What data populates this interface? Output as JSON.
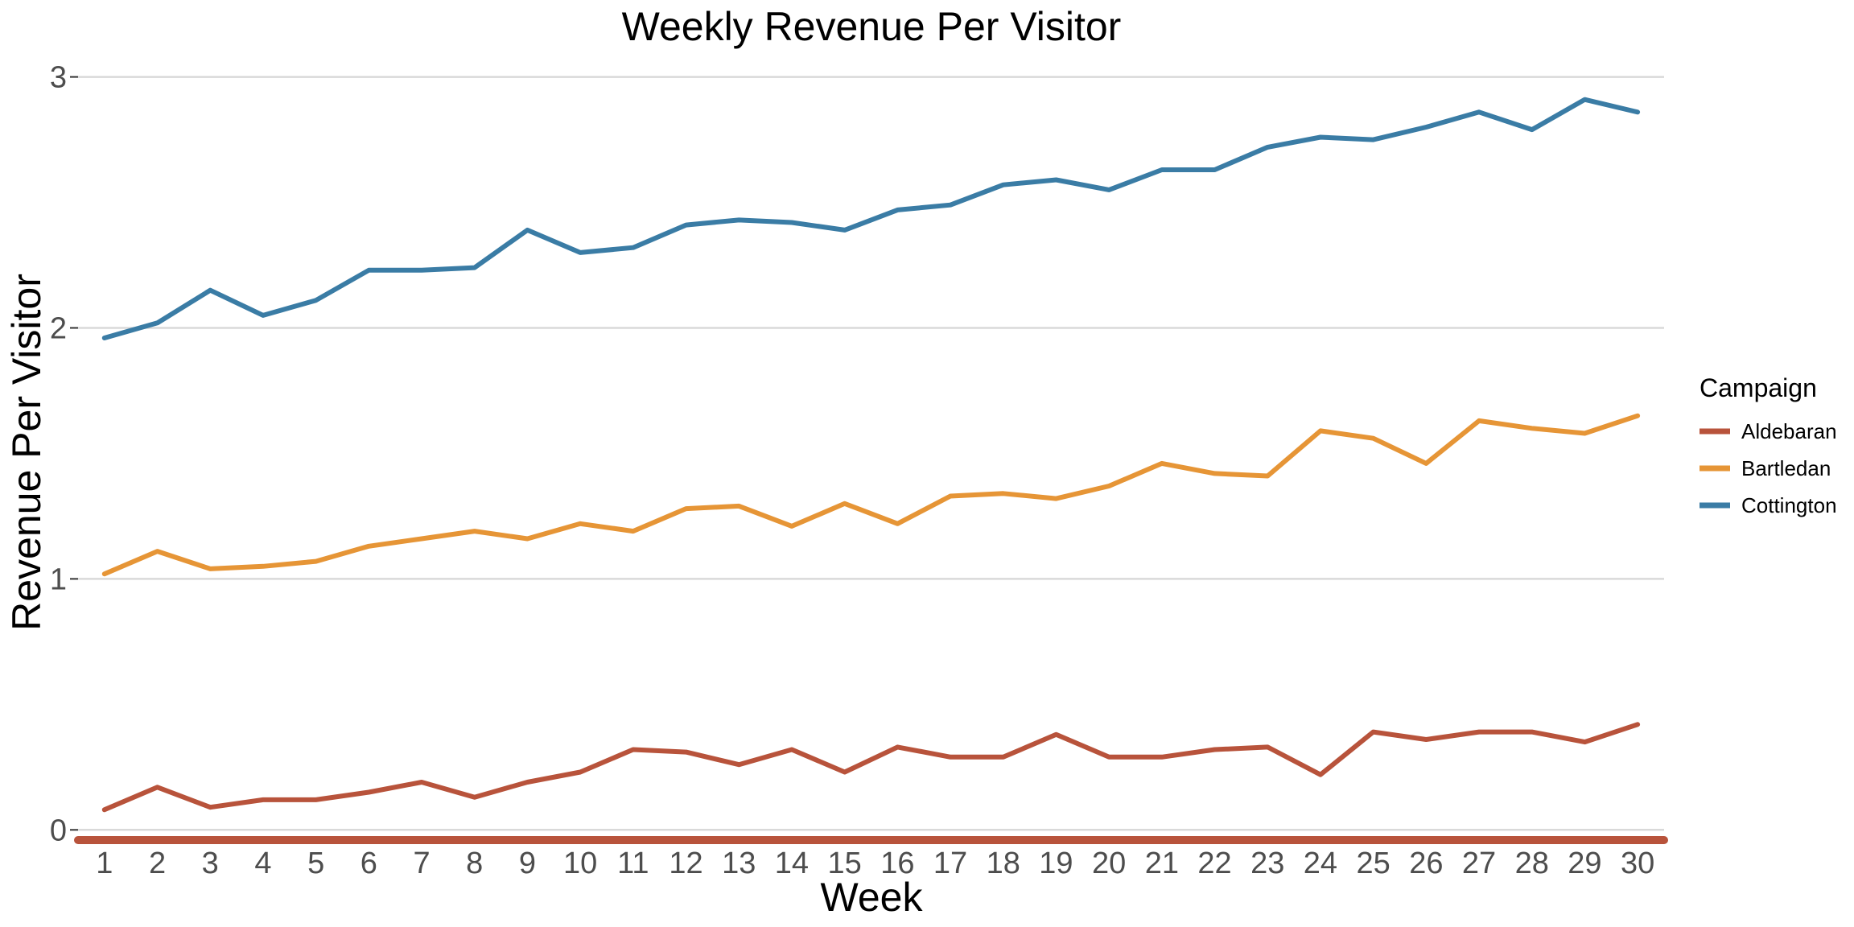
{
  "chart_data": {
    "type": "line",
    "title": "Weekly Revenue Per Visitor",
    "xlabel": "Week",
    "ylabel": "Revenue Per Visitor",
    "x": [
      1,
      2,
      3,
      4,
      5,
      6,
      7,
      8,
      9,
      10,
      11,
      12,
      13,
      14,
      15,
      16,
      17,
      18,
      19,
      20,
      21,
      22,
      23,
      24,
      25,
      26,
      27,
      28,
      29,
      30
    ],
    "xlim": [
      0.5,
      30.5
    ],
    "ylim": [
      -0.06,
      3.05
    ],
    "yticks": [
      0,
      1,
      2,
      3
    ],
    "grid": "horizontal",
    "legend": {
      "title": "Campaign",
      "placement": "right"
    },
    "series": [
      {
        "name": "Aldebaran",
        "color": "#B8533B",
        "values": [
          0.08,
          0.17,
          0.09,
          0.12,
          0.12,
          0.15,
          0.19,
          0.13,
          0.19,
          0.23,
          0.32,
          0.31,
          0.26,
          0.32,
          0.23,
          0.33,
          0.29,
          0.29,
          0.38,
          0.29,
          0.29,
          0.32,
          0.33,
          0.22,
          0.39,
          0.36,
          0.39,
          0.39,
          0.35,
          0.42
        ]
      },
      {
        "name": "Bartledan",
        "color": "#E69536",
        "values": [
          1.02,
          1.11,
          1.04,
          1.05,
          1.07,
          1.13,
          1.16,
          1.19,
          1.16,
          1.22,
          1.19,
          1.28,
          1.29,
          1.21,
          1.3,
          1.22,
          1.33,
          1.34,
          1.32,
          1.37,
          1.46,
          1.42,
          1.41,
          1.59,
          1.56,
          1.46,
          1.63,
          1.6,
          1.58,
          1.65
        ]
      },
      {
        "name": "Cottington",
        "color": "#3A7CA5",
        "values": [
          1.96,
          2.02,
          2.15,
          2.05,
          2.11,
          2.23,
          2.23,
          2.24,
          2.39,
          2.3,
          2.32,
          2.41,
          2.43,
          2.42,
          2.39,
          2.47,
          2.49,
          2.57,
          2.59,
          2.55,
          2.63,
          2.63,
          2.72,
          2.76,
          2.75,
          2.8,
          2.86,
          2.79,
          2.91,
          2.86
        ]
      }
    ]
  }
}
